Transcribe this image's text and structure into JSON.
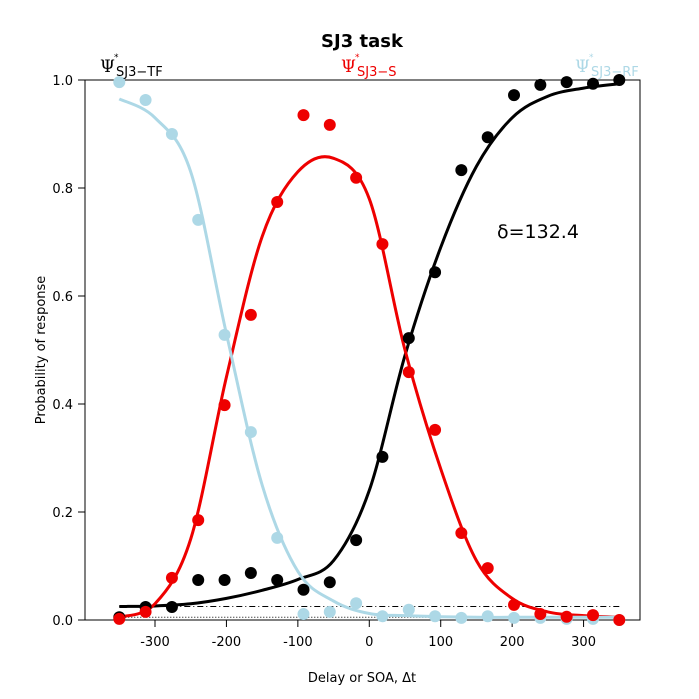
{
  "chart_data": {
    "type": "scatter_fit",
    "title": "SJ3 task",
    "x_label": "Delay or SOA, Δt",
    "y_label": "Probability of response",
    "annotation": "δ=132.4",
    "label_symbol": "Ψ",
    "label_sup": "*",
    "xlim": [
      -398,
      379
    ],
    "ylim": [
      0,
      1
    ],
    "xticks": [
      -300,
      -200,
      -100,
      0,
      100,
      200,
      300
    ],
    "yticks": [
      {
        "value": 0,
        "label": "0.0"
      },
      {
        "value": 0.2,
        "label": "0.2"
      },
      {
        "value": 0.4,
        "label": "0.4"
      },
      {
        "value": 0.6,
        "label": "0.6"
      },
      {
        "value": 0.8,
        "label": "0.8"
      },
      {
        "value": 1,
        "label": "1.0"
      }
    ],
    "x": [
      -350,
      -313.2,
      -276.3,
      -239.5,
      -202.6,
      -165.8,
      -128.9,
      -92.1,
      -55.3,
      -18.4,
      18.4,
      55.3,
      92.1,
      128.9,
      165.8,
      202.6,
      239.5,
      276.3,
      313.2,
      350
    ],
    "fit_x": [
      -350,
      -300,
      -250,
      -200,
      -150,
      -100,
      -50,
      0,
      50,
      100,
      150,
      200,
      250,
      300,
      350
    ],
    "hlines": [
      {
        "value": 0.025,
        "style": "dashdot"
      },
      {
        "value": 0.005,
        "style": "dotted"
      }
    ],
    "series": [
      {
        "name": "SJ3−TF",
        "color": "#000000",
        "values": [
          0.005,
          0.024,
          0.024,
          0.074,
          0.074,
          0.087,
          0.074,
          0.056,
          0.07,
          0.148,
          0.302,
          0.522,
          0.644,
          0.833,
          0.894,
          0.972,
          0.991,
          0.996,
          0.993,
          1.0
        ],
        "fit": [
          0.025,
          0.026,
          0.03,
          0.04,
          0.055,
          0.075,
          0.11,
          0.24,
          0.49,
          0.69,
          0.84,
          0.93,
          0.97,
          0.985,
          0.993
        ]
      },
      {
        "name": "SJ3−S",
        "color": "#ee0000",
        "values": [
          0.002,
          0.015,
          0.078,
          0.185,
          0.398,
          0.565,
          0.774,
          0.935,
          0.917,
          0.819,
          0.696,
          0.459,
          0.352,
          0.161,
          0.096,
          0.028,
          0.011,
          0.006,
          0.009,
          0.0
        ],
        "fit": [
          0.005,
          0.03,
          0.15,
          0.45,
          0.71,
          0.83,
          0.855,
          0.78,
          0.5,
          0.28,
          0.11,
          0.04,
          0.015,
          0.008,
          0.005
        ]
      },
      {
        "name": "SJ3−RF",
        "color": "#add8e6",
        "values": [
          0.996,
          0.963,
          0.9,
          0.741,
          0.528,
          0.348,
          0.152,
          0.011,
          0.015,
          0.031,
          0.007,
          0.019,
          0.007,
          0.004,
          0.007,
          0.004,
          0.004,
          0.002,
          0.002,
          0.0
        ],
        "fit": [
          0.965,
          0.93,
          0.83,
          0.53,
          0.25,
          0.09,
          0.035,
          0.012,
          0.008,
          0.006,
          0.005,
          0.005,
          0.005,
          0.005,
          0.005
        ]
      }
    ]
  }
}
